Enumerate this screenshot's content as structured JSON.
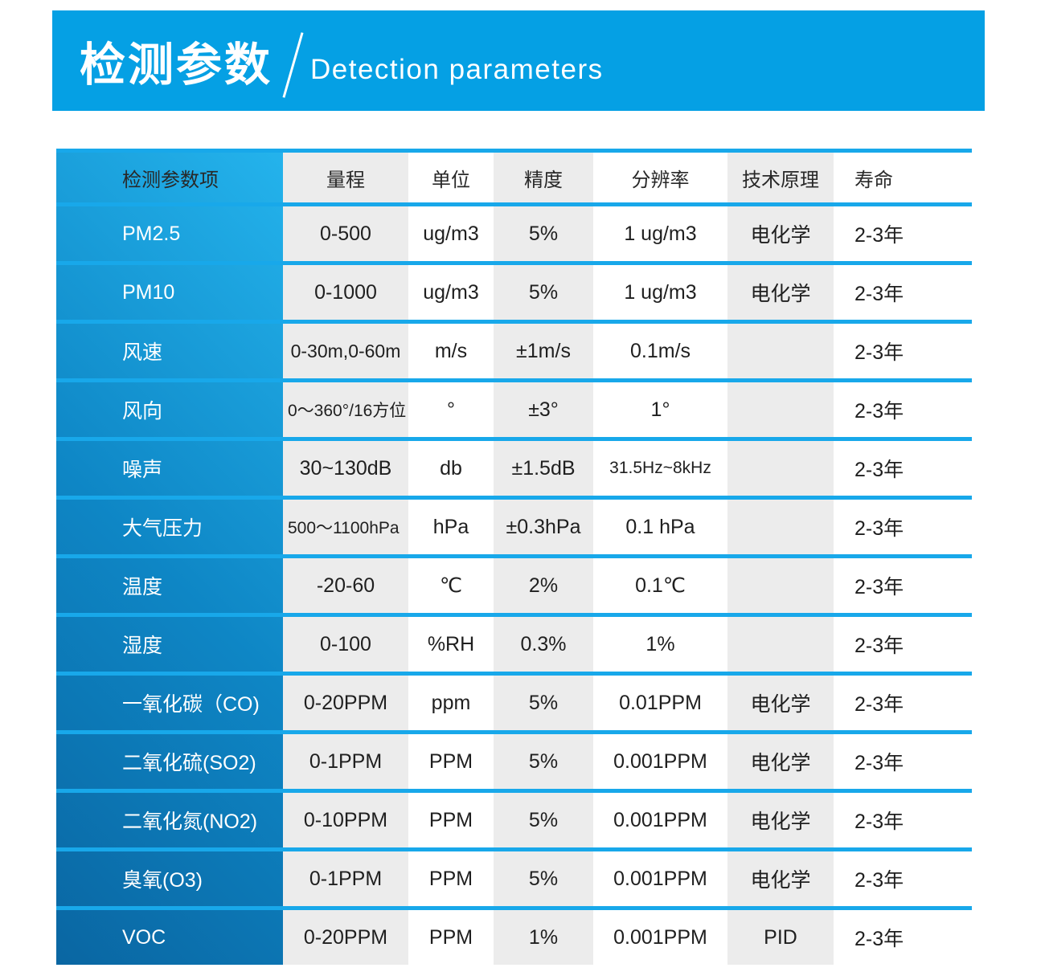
{
  "banner": {
    "title_zh": "检测参数",
    "title_en": "Detection parameters"
  },
  "table": {
    "headers": {
      "item": "检测参数项",
      "range": "量程",
      "unit": "单位",
      "accuracy": "精度",
      "resolution": "分辨率",
      "principle": "技术原理",
      "lifespan": "寿命"
    },
    "rows": [
      {
        "item": "PM2.5",
        "range": "0-500",
        "unit": "ug/m3",
        "accuracy": "5%",
        "resolution": "1 ug/m3",
        "principle": "电化学",
        "lifespan": "2-3年"
      },
      {
        "item": "PM10",
        "range": "0-1000",
        "unit": "ug/m3",
        "accuracy": "5%",
        "resolution": "1 ug/m3",
        "principle": "电化学",
        "lifespan": "2-3年"
      },
      {
        "item": "风速",
        "range": "0-30m,0-60m",
        "unit": "m/s",
        "accuracy": "±1m/s",
        "resolution": "0.1m/s",
        "principle": "",
        "lifespan": "2-3年"
      },
      {
        "item": "风向",
        "range": "0～360°/16方位",
        "unit": "°",
        "accuracy": "±3°",
        "resolution": "1°",
        "principle": "",
        "lifespan": "2-3年"
      },
      {
        "item": "噪声",
        "range": "30~130dB",
        "unit": "db",
        "accuracy": "±1.5dB",
        "resolution": "31.5Hz~8kHz",
        "principle": "",
        "lifespan": "2-3年"
      },
      {
        "item": "大气压力",
        "range": "500～1100hPa",
        "unit": "hPa",
        "accuracy": "±0.3hPa",
        "resolution": "0.1 hPa",
        "principle": "",
        "lifespan": "2-3年"
      },
      {
        "item": "温度",
        "range": "-20-60",
        "unit": "℃",
        "accuracy": "2%",
        "resolution": "0.1℃",
        "principle": "",
        "lifespan": "2-3年"
      },
      {
        "item": "湿度",
        "range": "0-100",
        "unit": "%RH",
        "accuracy": "0.3%",
        "resolution": "1%",
        "principle": "",
        "lifespan": "2-3年"
      },
      {
        "item": "一氧化碳（CO)",
        "range": "0-20PPM",
        "unit": "ppm",
        "accuracy": "5%",
        "resolution": "0.01PPM",
        "principle": "电化学",
        "lifespan": "2-3年"
      },
      {
        "item": "二氧化硫(SO2)",
        "range": "0-1PPM",
        "unit": "PPM",
        "accuracy": "5%",
        "resolution": "0.001PPM",
        "principle": "电化学",
        "lifespan": "2-3年"
      },
      {
        "item": "二氧化氮(NO2)",
        "range": "0-10PPM",
        "unit": "PPM",
        "accuracy": "5%",
        "resolution": "0.001PPM",
        "principle": "电化学",
        "lifespan": "2-3年"
      },
      {
        "item": "臭氧(O3)",
        "range": "0-1PPM",
        "unit": "PPM",
        "accuracy": "5%",
        "resolution": "0.001PPM",
        "principle": "电化学",
        "lifespan": "2-3年"
      },
      {
        "item": "VOC",
        "range": "0-20PPM",
        "unit": "PPM",
        "accuracy": "1%",
        "resolution": "0.001PPM",
        "principle": "PID",
        "lifespan": "2-3年"
      }
    ]
  },
  "colors": {
    "banner_blue": "#05A0E4",
    "separator_blue": "#18A8EA",
    "column_gray": "#ECECEC",
    "item_gradient_light": "#24B3EC",
    "item_gradient_dark": "#0A66A2",
    "text_dark": "#1F1F1F",
    "text_white": "#FFFFFF"
  }
}
